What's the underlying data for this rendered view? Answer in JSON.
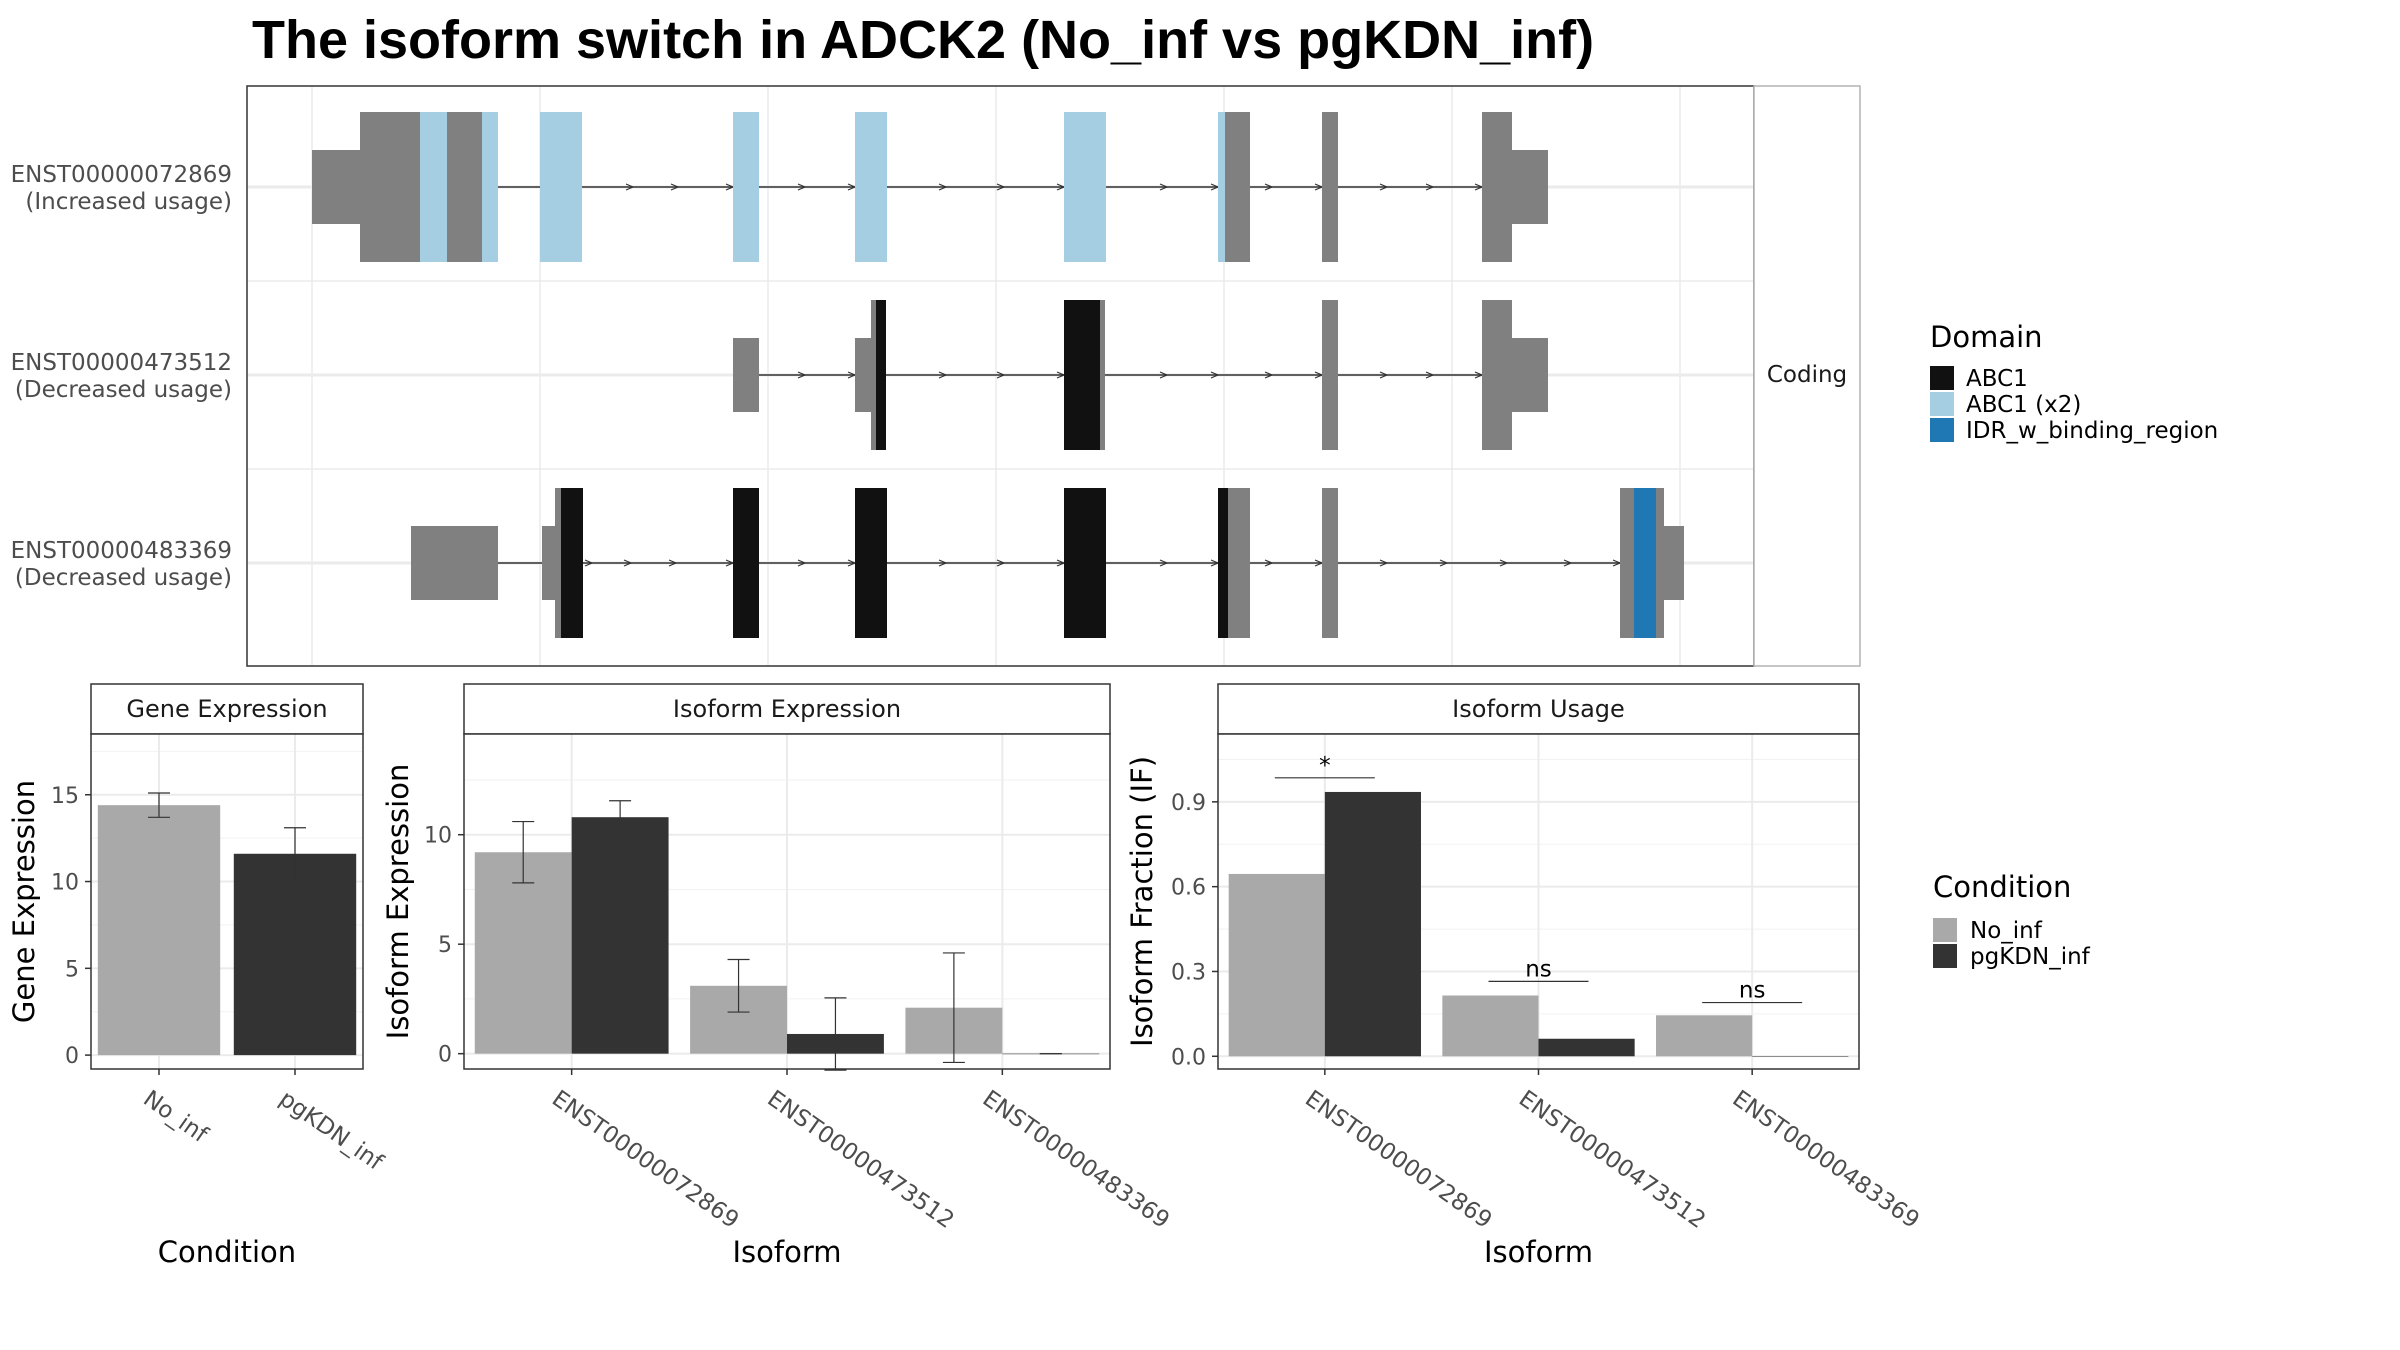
{
  "title": "The isoform switch in ADCK2 (No_inf vs pgKDN_inf)",
  "structure": {
    "strip_label": "Coding",
    "isoforms": [
      {
        "id": "ENST00000072869",
        "usage": "(Increased usage)"
      },
      {
        "id": "ENST00000473512",
        "usage": "(Decreased usage)"
      },
      {
        "id": "ENST00000483369",
        "usage": "(Decreased usage)"
      }
    ]
  },
  "legend_domain": {
    "title": "Domain",
    "items": [
      {
        "label": "ABC1",
        "color": "#111111"
      },
      {
        "label": "ABC1 (x2)",
        "color": "#a6cee3"
      },
      {
        "label": "IDR_w_binding_region",
        "color": "#1f78b4"
      }
    ]
  },
  "legend_condition": {
    "title": "Condition",
    "items": [
      {
        "label": "No_inf",
        "color": "#a9a9a9"
      },
      {
        "label": "pgKDN_inf",
        "color": "#333333"
      }
    ]
  },
  "colors": {
    "utr": "#808080",
    "no_inf": "#a9a9a9",
    "pgkdn_inf": "#333333",
    "abc1": "#111111",
    "abc1_x2": "#a6cee3",
    "idr": "#1f78b4"
  },
  "chart_data": [
    {
      "type": "bar",
      "title": "Gene Expression",
      "xlabel": "Condition",
      "ylabel": "Gene Expression",
      "categories": [
        "No_inf",
        "pgKDN_inf"
      ],
      "series": [
        {
          "name": "Condition",
          "values": [
            14.4,
            11.6
          ],
          "errors": [
            0.7,
            1.5
          ]
        }
      ],
      "ylim": [
        -0.8,
        18.5
      ],
      "yticks": [
        0,
        5,
        10,
        15
      ],
      "grid": true,
      "legend": "right"
    },
    {
      "type": "bar",
      "title": "Isoform Expression",
      "xlabel": "Isoform",
      "ylabel": "Isoform Expression",
      "categories": [
        "ENST00000072869",
        "ENST00000473512",
        "ENST00000483369"
      ],
      "series": [
        {
          "name": "No_inf",
          "values": [
            9.2,
            3.1,
            2.1
          ],
          "errors": [
            1.4,
            1.2,
            2.5
          ]
        },
        {
          "name": "pgKDN_inf",
          "values": [
            10.8,
            0.9,
            0.0
          ],
          "errors": [
            0.75,
            1.65,
            0.0
          ]
        }
      ],
      "ylim": [
        -0.7,
        14.6
      ],
      "yticks": [
        0,
        5,
        10
      ],
      "grid": true,
      "legend": "right"
    },
    {
      "type": "bar",
      "title": "Isoform Usage",
      "xlabel": "Isoform",
      "ylabel": "Isoform Fraction (IF)",
      "categories": [
        "ENST00000072869",
        "ENST00000473512",
        "ENST00000483369"
      ],
      "series": [
        {
          "name": "No_inf",
          "values": [
            0.645,
            0.215,
            0.145
          ]
        },
        {
          "name": "pgKDN_inf",
          "values": [
            0.935,
            0.062,
            0.0
          ]
        }
      ],
      "significance": [
        "*",
        "ns",
        "ns"
      ],
      "significance_y": [
        0.985,
        0.265,
        0.19
      ],
      "ylim": [
        -0.045,
        1.14
      ],
      "yticks": [
        0.0,
        0.3,
        0.6,
        0.9
      ],
      "ytick_labels": [
        "0.0",
        "0.3",
        "0.6",
        "0.9"
      ],
      "grid": true,
      "legend": "right"
    }
  ]
}
